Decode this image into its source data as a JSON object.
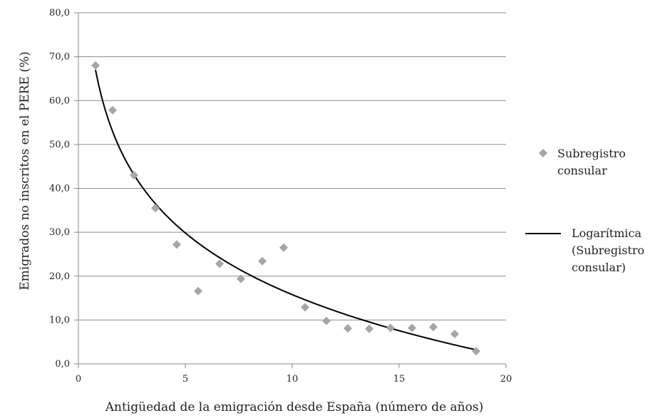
{
  "chart_data": {
    "type": "scatter",
    "title": "",
    "xlabel": "Antigüedad de la emigración desde España (número de años)",
    "ylabel": "Emigrados no inscritos en el PERE (%)",
    "xlim": [
      0,
      20
    ],
    "ylim": [
      0,
      80
    ],
    "x_ticks": [
      "0",
      "5",
      "10",
      "15",
      "20"
    ],
    "y_ticks": [
      "0,0",
      "10,0",
      "20,0",
      "30,0",
      "40,0",
      "50,0",
      "60,0",
      "70,0",
      "80,0"
    ],
    "grid": "horizontal",
    "legend_position": "right",
    "series": [
      {
        "name": "Subregistro consular",
        "kind": "points",
        "color": "#a6a6a6",
        "points": [
          {
            "x": 0.8,
            "y": 68.0
          },
          {
            "x": 1.6,
            "y": 57.8
          },
          {
            "x": 2.6,
            "y": 43.0
          },
          {
            "x": 3.6,
            "y": 35.5
          },
          {
            "x": 4.6,
            "y": 27.2
          },
          {
            "x": 5.6,
            "y": 16.6
          },
          {
            "x": 6.6,
            "y": 22.8
          },
          {
            "x": 7.6,
            "y": 19.4
          },
          {
            "x": 8.6,
            "y": 23.4
          },
          {
            "x": 9.6,
            "y": 26.5
          },
          {
            "x": 10.6,
            "y": 12.9
          },
          {
            "x": 11.6,
            "y": 9.8
          },
          {
            "x": 12.6,
            "y": 8.1
          },
          {
            "x": 13.6,
            "y": 8.0
          },
          {
            "x": 14.6,
            "y": 8.2
          },
          {
            "x": 15.6,
            "y": 8.2
          },
          {
            "x": 16.6,
            "y": 8.4
          },
          {
            "x": 17.6,
            "y": 6.8
          },
          {
            "x": 18.6,
            "y": 2.9
          }
        ]
      },
      {
        "name": "Logarítmica (Subregistro consular)",
        "kind": "line",
        "color": "#000000",
        "fit": "logarithmic",
        "x_range": [
          0.8,
          18.6
        ],
        "points": [
          {
            "x": 0.8,
            "y": 67.0
          },
          {
            "x": 2.6,
            "y": 43.0
          },
          {
            "x": 4.6,
            "y": 31.0
          },
          {
            "x": 6.6,
            "y": 24.5
          },
          {
            "x": 9.6,
            "y": 17.0
          },
          {
            "x": 13.6,
            "y": 10.0
          },
          {
            "x": 18.6,
            "y": 3.2
          }
        ]
      }
    ]
  },
  "legend": {
    "scatter_lines": [
      "Subregistro",
      "consular"
    ],
    "line_lines": [
      "Logarítmica",
      "(Subregistro",
      "consular)"
    ]
  }
}
